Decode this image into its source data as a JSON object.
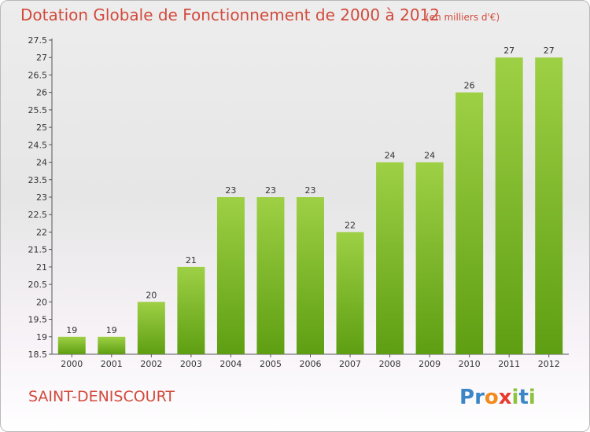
{
  "header": {
    "title": "Dotation Globale de Fonctionnement de 2000 à 2012",
    "subtitle": "(en milliers d'€)"
  },
  "footer": {
    "city": "SAINT-DENISCOURT",
    "logo_letters": [
      "P",
      "r",
      "o",
      "x",
      "i",
      "t",
      "i"
    ]
  },
  "colors": {
    "title": "#d24a3c",
    "bar_top": "#9ed045",
    "bar_bottom": "#5e9e12",
    "logo": [
      "#3b86c8",
      "#3b86c8",
      "#f28a1c",
      "#e63b2e",
      "#8cc33f",
      "#3b86c8",
      "#8cc33f"
    ]
  },
  "chart_data": {
    "type": "bar",
    "categories": [
      "2000",
      "2001",
      "2002",
      "2003",
      "2004",
      "2005",
      "2006",
      "2007",
      "2008",
      "2009",
      "2010",
      "2011",
      "2012"
    ],
    "values": [
      19,
      19,
      20,
      21,
      23,
      23,
      23,
      22,
      24,
      24,
      26,
      27,
      27
    ],
    "ylim": [
      18.5,
      27.5
    ],
    "yticks": [
      18.5,
      19,
      19.5,
      20,
      20.5,
      21,
      21.5,
      22,
      22.5,
      23,
      23.5,
      24,
      24.5,
      25,
      25.5,
      26,
      26.5,
      27,
      27.5
    ],
    "grid": false,
    "legend": "none"
  }
}
